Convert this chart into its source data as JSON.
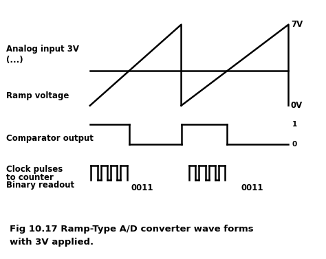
{
  "title_line1": "Fig 10.17 Ramp-Type A/D converter wave forms",
  "title_line2": "with 3V applied.",
  "background_color": "#ffffff",
  "line_color": "#000000",
  "analog_label": "Analog input 3V\n(...)",
  "ramp_label": "Ramp voltage",
  "comparator_label": "Comparator output",
  "clock_label_line1": "Clock pulses",
  "clock_label_line2": "to counter",
  "clock_label_line3": "Binary readout",
  "binary_readout_1": "0011",
  "binary_readout_2": "0011",
  "label_7v": "7V",
  "label_0v": "0V",
  "label_1": "1",
  "label_0": "0",
  "lw": 1.8,
  "fontsize_label": 8.5,
  "fontsize_small": 7.5,
  "fontsize_title": 9.5
}
